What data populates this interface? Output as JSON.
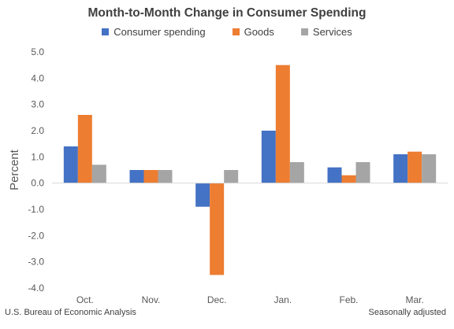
{
  "chart_data": {
    "type": "bar",
    "title": "Month-to-Month Change in Consumer Spending",
    "xlabel": "",
    "ylabel": "Percent",
    "ylim": [
      -4.0,
      5.0
    ],
    "yticks": [
      "5.0",
      "4.0",
      "3.0",
      "2.0",
      "1.0",
      "0.0",
      "-1.0",
      "-2.0",
      "-3.0",
      "-4.0"
    ],
    "categories": [
      "Oct.",
      "Nov.",
      "Dec.",
      "Jan.",
      "Feb.",
      "Mar."
    ],
    "series": [
      {
        "name": "Consumer spending",
        "color": "#4472C4",
        "values": [
          1.4,
          0.5,
          -0.9,
          2.0,
          0.6,
          1.1
        ]
      },
      {
        "name": "Goods",
        "color": "#ED7D31",
        "values": [
          2.6,
          0.5,
          -3.5,
          4.5,
          0.3,
          1.2
        ]
      },
      {
        "name": "Services",
        "color": "#A5A5A5",
        "values": [
          0.7,
          0.5,
          0.5,
          0.8,
          0.8,
          1.1
        ]
      }
    ],
    "grid": false,
    "legend_position": "top"
  },
  "footer": {
    "source": "U.S. Bureau of Economic Analysis",
    "note": "Seasonally adjusted"
  }
}
